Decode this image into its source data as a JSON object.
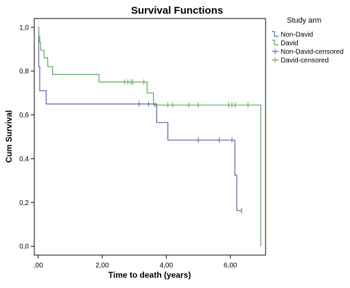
{
  "chart_data": {
    "type": "line",
    "title": "Survival Functions",
    "xlabel": "Time to death (years)",
    "ylabel": "Cum Survival",
    "xlim": [
      -0.12,
      7.1
    ],
    "ylim": [
      -0.04,
      1.04
    ],
    "x_ticks": [
      0,
      2,
      4,
      6
    ],
    "x_tick_labels": [
      ",00",
      "2,00",
      "4,00",
      "6,00"
    ],
    "y_ticks": [
      0,
      0.2,
      0.4,
      0.6,
      0.8,
      1.0
    ],
    "y_tick_labels": [
      "0,0",
      "0,2",
      "0,4",
      "0,6",
      "0,8",
      "1,0"
    ],
    "grid": false,
    "legend": {
      "title": "Study arm",
      "position": "right",
      "entries": [
        "Non-David",
        "David",
        "Non-David-censored",
        "David-censored"
      ]
    },
    "series": [
      {
        "name": "Non-David",
        "color": "#5b5fa6",
        "step_points": [
          [
            0,
            1.0
          ],
          [
            0.02,
            0.82
          ],
          [
            0.05,
            0.71
          ],
          [
            0.25,
            0.65
          ],
          [
            3.6,
            0.65
          ],
          [
            3.7,
            0.565
          ],
          [
            4.05,
            0.485
          ],
          [
            6.1,
            0.485
          ],
          [
            6.14,
            0.325
          ],
          [
            6.2,
            0.163
          ],
          [
            6.35,
            0.163
          ]
        ],
        "censored": [
          [
            3.15,
            0.65
          ],
          [
            3.45,
            0.65
          ],
          [
            5.0,
            0.485
          ],
          [
            5.65,
            0.485
          ],
          [
            6.05,
            0.485
          ],
          [
            6.35,
            0.163
          ]
        ]
      },
      {
        "name": "David",
        "color": "#5aa65a",
        "step_points": [
          [
            0,
            1.0
          ],
          [
            0.02,
            0.96
          ],
          [
            0.05,
            0.93
          ],
          [
            0.08,
            0.895
          ],
          [
            0.18,
            0.86
          ],
          [
            0.3,
            0.82
          ],
          [
            0.45,
            0.785
          ],
          [
            1.85,
            0.785
          ],
          [
            1.9,
            0.75
          ],
          [
            3.3,
            0.75
          ],
          [
            3.4,
            0.7
          ],
          [
            3.6,
            0.645
          ],
          [
            6.95,
            0.645
          ],
          [
            6.95,
            0.0
          ]
        ],
        "censored": [
          [
            2.7,
            0.75
          ],
          [
            2.8,
            0.75
          ],
          [
            2.9,
            0.75
          ],
          [
            2.95,
            0.75
          ],
          [
            3.3,
            0.75
          ],
          [
            3.65,
            0.645
          ],
          [
            4.05,
            0.645
          ],
          [
            4.2,
            0.645
          ],
          [
            4.7,
            0.645
          ],
          [
            5.0,
            0.645
          ],
          [
            5.95,
            0.645
          ],
          [
            6.05,
            0.645
          ],
          [
            6.15,
            0.645
          ],
          [
            6.55,
            0.645
          ]
        ]
      }
    ]
  }
}
